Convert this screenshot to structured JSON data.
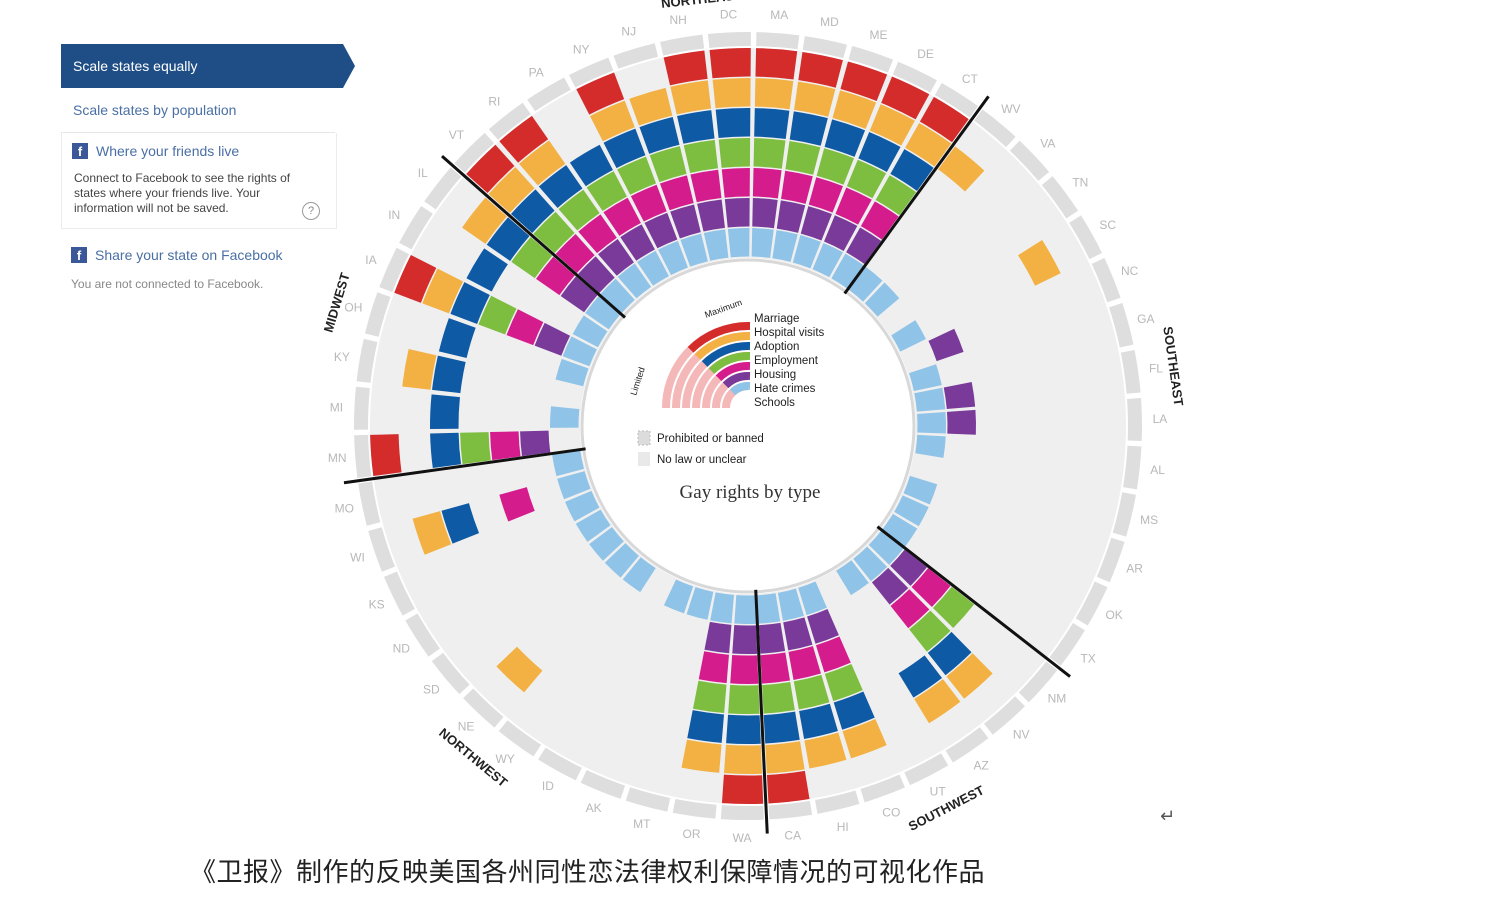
{
  "panel": {
    "scale_equal": "Scale states equally",
    "scale_population": "Scale states by population",
    "friends_title": "Where your friends live",
    "friends_desc": "Connect to Facebook to see the rights of states where your friends live. Your information will not be saved.",
    "help": "?",
    "share": "Share your state on Facebook",
    "not_connected": "You are not connected to Facebook.",
    "fb_glyph": "f"
  },
  "chart_data": {
    "type": "radial-heatmap",
    "title": "Gay rights by type",
    "rings": [
      "Marriage",
      "Hospital visits",
      "Adoption",
      "Employment",
      "Housing",
      "Hate crimes",
      "Schools"
    ],
    "scale_labels": {
      "max": "Maximum",
      "min": "Limited"
    },
    "legend_extra": [
      "Prohibited or banned",
      "No law or unclear"
    ],
    "colors": {
      "Marriage": "#d42b2b",
      "Hospital visits": "#f2b142",
      "Adoption": "#0f5aa5",
      "Employment": "#7dbd3f",
      "Housing": "#d41c8c",
      "Hate crimes": "#7a3a9a",
      "Schools": "#8fc3e8",
      "empty": "#ececec"
    },
    "regions": [
      {
        "name": "MIDWEST",
        "states": [
          "MN",
          "MI",
          "KY",
          "OH",
          "IA",
          "IN",
          "IL"
        ]
      },
      {
        "name": "NORTHEAST",
        "states": [
          "VT",
          "RI",
          "PA",
          "NY",
          "NJ",
          "NH",
          "DC",
          "MA",
          "MD",
          "ME",
          "DE",
          "CT"
        ]
      },
      {
        "name": "SOUTHEAST",
        "states": [
          "WV",
          "VA",
          "TN",
          "SC",
          "NC",
          "GA",
          "FL",
          "LA",
          "AL",
          "MS",
          "AR",
          "OK",
          "TX"
        ]
      },
      {
        "name": "SOUTHWEST",
        "states": [
          "NM",
          "NV",
          "AZ",
          "UT",
          "CO",
          "HI",
          "CA"
        ]
      },
      {
        "name": "NORTHWEST",
        "states": [
          "WA",
          "OR",
          "MT",
          "AK",
          "ID",
          "WY",
          "NE",
          "SD",
          "ND",
          "KS",
          "WI",
          "MO"
        ]
      }
    ]
  },
  "caption": "《卫报》制作的反映美国各州同性恋法律权利保障情况的可视化作品",
  "return_glyph": "↵"
}
